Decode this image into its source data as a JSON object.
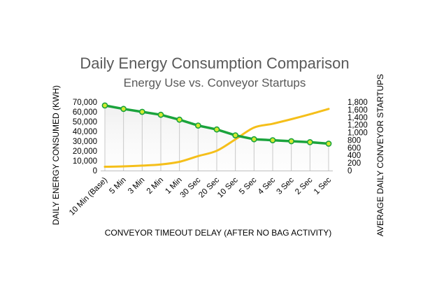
{
  "chart_data": {
    "type": "line",
    "title": "Daily Energy Consumption Comparison",
    "subtitle": "Energy Use vs. Conveyor Startups",
    "xlabel": "CONVEYOR TIMEOUT DELAY (AFTER NO BAG ACTIVITY)",
    "ylabel": "DAILY ENERGY CONSUMED (KWH)",
    "y2label": "AVERAGE DAILY CONVEYOR STARTUPS",
    "categories": [
      "10 Min (Base)",
      "5 Min",
      "3 Min",
      "2 Min",
      "1 Min",
      "30 Sec",
      "20 Sec",
      "10 Sec",
      "5 Sec",
      "4 Sec",
      "3 Sec",
      "2 Sec",
      "1 Sec"
    ],
    "ylim": [
      0,
      70000
    ],
    "y_ticks": [
      "0",
      "10,000",
      "20,000",
      "30,000",
      "40,000",
      "50,000",
      "60,000",
      "70,000"
    ],
    "y2lim": [
      0,
      1800
    ],
    "y2_ticks": [
      "0",
      "200",
      "400",
      "600",
      "800",
      "1,000",
      "1,200",
      "1,400",
      "1,600",
      "1,800"
    ],
    "grid": false,
    "series": [
      {
        "axis": "left",
        "color": "#1aa33c",
        "marker_color": "#d4ea2f",
        "values": [
          66500,
          63000,
          60000,
          57000,
          52000,
          46000,
          42000,
          36000,
          32000,
          31000,
          30000,
          29000,
          27500
        ]
      },
      {
        "axis": "right",
        "color": "#f5bf1a",
        "values": [
          100,
          110,
          130,
          160,
          230,
          380,
          520,
          820,
          1130,
          1230,
          1350,
          1480,
          1620
        ]
      }
    ]
  }
}
